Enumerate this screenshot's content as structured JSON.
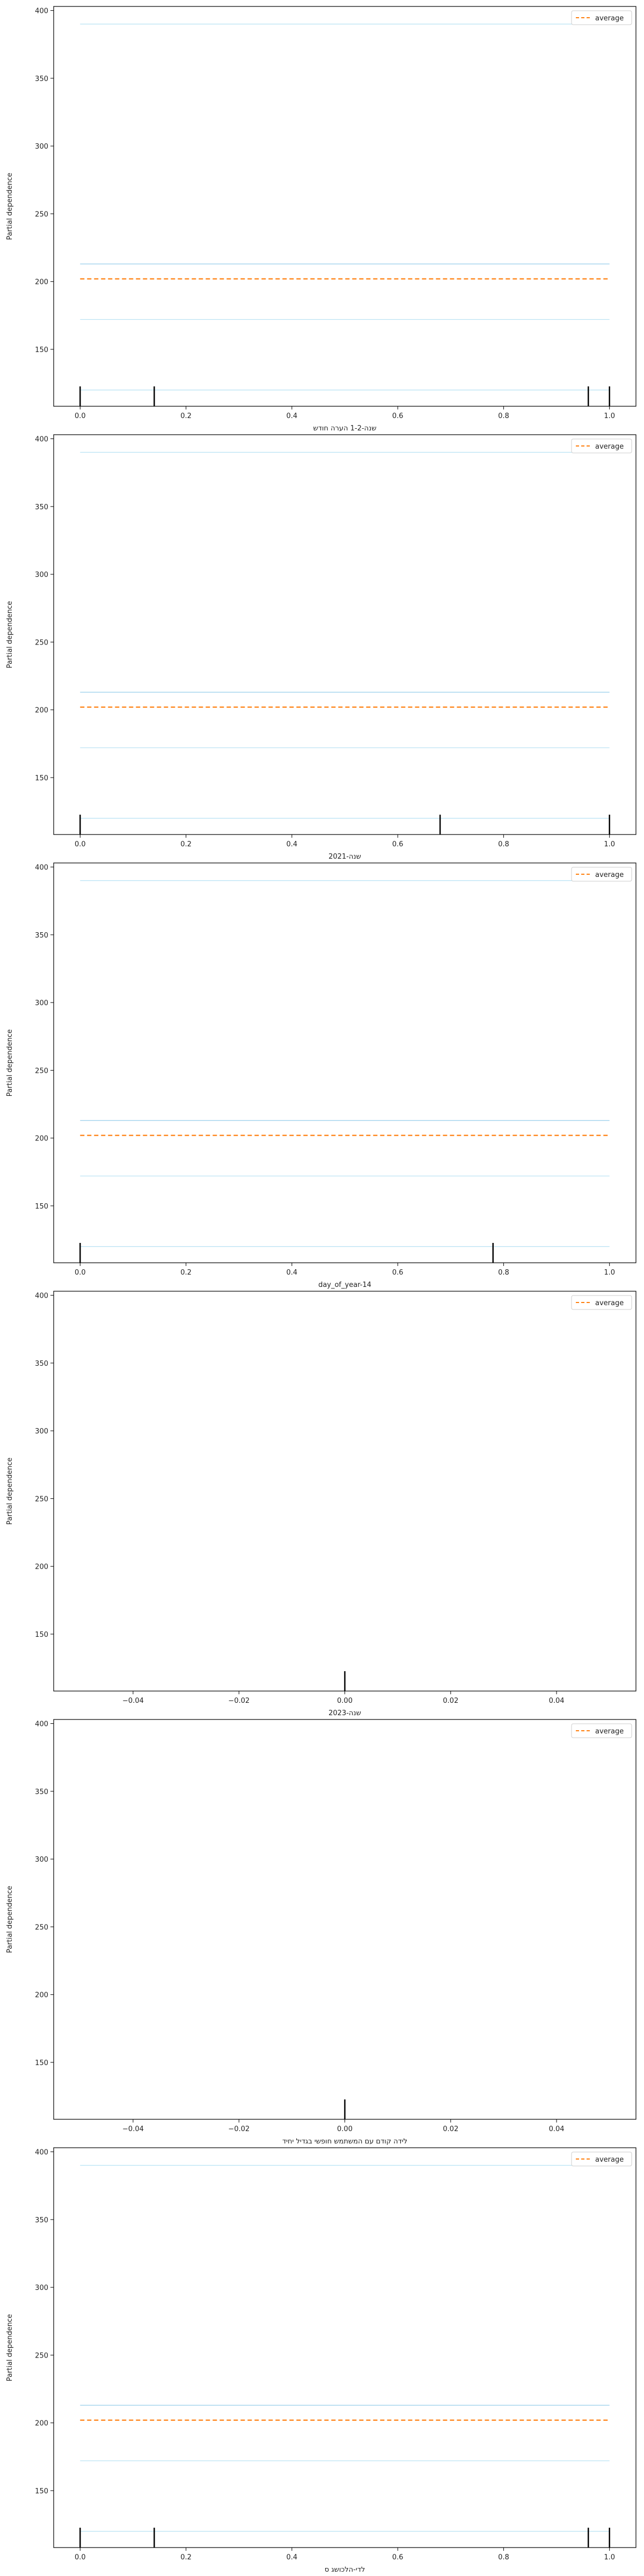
{
  "figure": {
    "background": "#ffffff"
  },
  "chart_data": [
    {
      "type": "line",
      "xlabel": "שנה-1-2 הערה חודש",
      "ylabel": "Partial dependence",
      "xlim": [
        -0.05,
        1.05
      ],
      "ylim": [
        108,
        403
      ],
      "xticks": [
        0.0,
        0.2,
        0.4,
        0.6,
        0.8,
        1.0
      ],
      "xtick_labels": [
        "0.0",
        "0.2",
        "0.4",
        "0.6",
        "0.8",
        "1.0"
      ],
      "yticks": [
        150,
        200,
        250,
        300,
        350,
        400
      ],
      "ytick_labels": [
        "150",
        "200",
        "250",
        "300",
        "350",
        "400"
      ],
      "legend": {
        "position": "top-right",
        "entries": [
          "average"
        ]
      },
      "series": [
        {
          "role": "ice",
          "x": [
            0,
            1
          ],
          "values": [
            390,
            390
          ],
          "color": "#bde4f4"
        },
        {
          "role": "ice",
          "x": [
            0,
            1
          ],
          "values": [
            213,
            213
          ],
          "color": "#9fd2ec"
        },
        {
          "role": "ice",
          "x": [
            0,
            1
          ],
          "values": [
            172,
            172
          ],
          "color": "#bde4f4"
        },
        {
          "role": "ice",
          "x": [
            0,
            1
          ],
          "values": [
            120,
            120
          ],
          "color": "#bde4f4"
        },
        {
          "role": "average",
          "name": "average",
          "x": [
            0,
            1
          ],
          "values": [
            202,
            202
          ],
          "color": "#ff7f0e",
          "dashed": true
        }
      ],
      "rug": [
        0.0,
        0.14,
        0.96,
        1.0
      ]
    },
    {
      "type": "line",
      "xlabel": "שנה-2021",
      "ylabel": "Partial dependence",
      "xlim": [
        -0.05,
        1.05
      ],
      "ylim": [
        108,
        403
      ],
      "xticks": [
        0.0,
        0.2,
        0.4,
        0.6,
        0.8,
        1.0
      ],
      "xtick_labels": [
        "0.0",
        "0.2",
        "0.4",
        "0.6",
        "0.8",
        "1.0"
      ],
      "yticks": [
        150,
        200,
        250,
        300,
        350,
        400
      ],
      "ytick_labels": [
        "150",
        "200",
        "250",
        "300",
        "350",
        "400"
      ],
      "legend": {
        "position": "top-right",
        "entries": [
          "average"
        ]
      },
      "series": [
        {
          "role": "ice",
          "x": [
            0,
            1
          ],
          "values": [
            390,
            390
          ],
          "color": "#bde4f4"
        },
        {
          "role": "ice",
          "x": [
            0,
            1
          ],
          "values": [
            213,
            213
          ],
          "color": "#9fd2ec"
        },
        {
          "role": "ice",
          "x": [
            0,
            1
          ],
          "values": [
            172,
            172
          ],
          "color": "#bde4f4"
        },
        {
          "role": "ice",
          "x": [
            0,
            1
          ],
          "values": [
            120,
            120
          ],
          "color": "#bde4f4"
        },
        {
          "role": "average",
          "name": "average",
          "x": [
            0,
            1
          ],
          "values": [
            202,
            202
          ],
          "color": "#ff7f0e",
          "dashed": true
        }
      ],
      "rug": [
        0.0,
        0.68,
        1.0
      ]
    },
    {
      "type": "line",
      "xlabel": "day_of_year-14",
      "ylabel": "Partial dependence",
      "xlim": [
        -0.05,
        1.05
      ],
      "ylim": [
        108,
        403
      ],
      "xticks": [
        0.0,
        0.2,
        0.4,
        0.6,
        0.8,
        1.0
      ],
      "xtick_labels": [
        "0.0",
        "0.2",
        "0.4",
        "0.6",
        "0.8",
        "1.0"
      ],
      "yticks": [
        150,
        200,
        250,
        300,
        350,
        400
      ],
      "ytick_labels": [
        "150",
        "200",
        "250",
        "300",
        "350",
        "400"
      ],
      "legend": {
        "position": "top-right",
        "entries": [
          "average"
        ]
      },
      "series": [
        {
          "role": "ice",
          "x": [
            0,
            1
          ],
          "values": [
            390,
            390
          ],
          "color": "#bde4f4"
        },
        {
          "role": "ice",
          "x": [
            0,
            1
          ],
          "values": [
            213,
            213
          ],
          "color": "#9fd2ec"
        },
        {
          "role": "ice",
          "x": [
            0,
            1
          ],
          "values": [
            172,
            172
          ],
          "color": "#bde4f4"
        },
        {
          "role": "ice",
          "x": [
            0,
            1
          ],
          "values": [
            120,
            120
          ],
          "color": "#bde4f4"
        },
        {
          "role": "average",
          "name": "average",
          "x": [
            0,
            1
          ],
          "values": [
            202,
            202
          ],
          "color": "#ff7f0e",
          "dashed": true
        }
      ],
      "rug": [
        0.0,
        0.78
      ]
    },
    {
      "type": "line",
      "xlabel": "שנה-2023",
      "ylabel": "Partial dependence",
      "xlim": [
        -0.055,
        0.055
      ],
      "ylim": [
        108,
        403
      ],
      "xticks": [
        -0.04,
        -0.02,
        0.0,
        0.02,
        0.04
      ],
      "xtick_labels": [
        "−0.04",
        "−0.02",
        "0.00",
        "0.02",
        "0.04"
      ],
      "yticks": [
        150,
        200,
        250,
        300,
        350,
        400
      ],
      "ytick_labels": [
        "150",
        "200",
        "250",
        "300",
        "350",
        "400"
      ],
      "legend": {
        "position": "top-right",
        "entries": [
          "average"
        ]
      },
      "series": [],
      "rug": [
        0.0
      ]
    },
    {
      "type": "line",
      "xlabel": "לידה קודם עם המשתמש חופשי בגדיל יחיד",
      "ylabel": "Partial dependence",
      "xlim": [
        -0.055,
        0.055
      ],
      "ylim": [
        108,
        403
      ],
      "xticks": [
        -0.04,
        -0.02,
        0.0,
        0.02,
        0.04
      ],
      "xtick_labels": [
        "−0.04",
        "−0.02",
        "0.00",
        "0.02",
        "0.04"
      ],
      "yticks": [
        150,
        200,
        250,
        300,
        350,
        400
      ],
      "ytick_labels": [
        "150",
        "200",
        "250",
        "300",
        "350",
        "400"
      ],
      "legend": {
        "position": "top-right",
        "entries": [
          "average"
        ]
      },
      "series": [],
      "rug": [
        0.0
      ]
    },
    {
      "type": "line",
      "xlabel": "לדי-הלכושג ס",
      "ylabel": "Partial dependence",
      "xlim": [
        -0.05,
        1.05
      ],
      "ylim": [
        108,
        403
      ],
      "xticks": [
        0.0,
        0.2,
        0.4,
        0.6,
        0.8,
        1.0
      ],
      "xtick_labels": [
        "0.0",
        "0.2",
        "0.4",
        "0.6",
        "0.8",
        "1.0"
      ],
      "yticks": [
        150,
        200,
        250,
        300,
        350,
        400
      ],
      "ytick_labels": [
        "150",
        "200",
        "250",
        "300",
        "350",
        "400"
      ],
      "legend": {
        "position": "top-right",
        "entries": [
          "average"
        ]
      },
      "series": [
        {
          "role": "ice",
          "x": [
            0,
            1
          ],
          "values": [
            390,
            390
          ],
          "color": "#bde4f4"
        },
        {
          "role": "ice",
          "x": [
            0,
            1
          ],
          "values": [
            213,
            213
          ],
          "color": "#9fd2ec"
        },
        {
          "role": "ice",
          "x": [
            0,
            1
          ],
          "values": [
            172,
            172
          ],
          "color": "#bde4f4"
        },
        {
          "role": "ice",
          "x": [
            0,
            1
          ],
          "values": [
            120,
            120
          ],
          "color": "#bde4f4"
        },
        {
          "role": "average",
          "name": "average",
          "x": [
            0,
            1
          ],
          "values": [
            202,
            202
          ],
          "color": "#ff7f0e",
          "dashed": true
        }
      ],
      "rug": [
        0.0,
        0.14,
        0.96,
        1.0
      ]
    }
  ]
}
